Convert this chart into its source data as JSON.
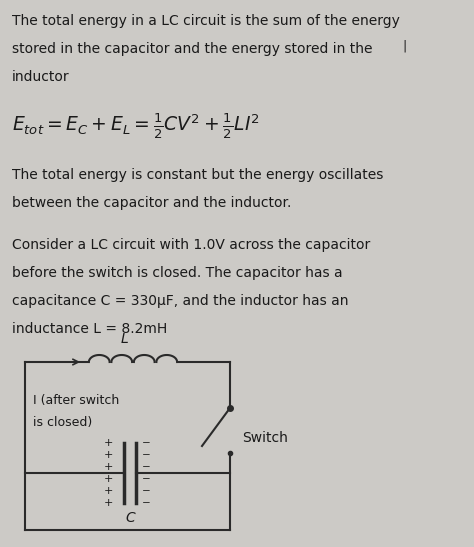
{
  "background_color": "#cccac6",
  "text_color": "#1a1a1a",
  "title_line1": "The total energy in a LC circuit is the sum of the energy",
  "title_line2": "stored in the capacitor and the energy stored in the⎥",
  "title_line3": "inductor",
  "equation": "$E_{tot} = E_C + E_L = \\frac{1}{2}CV^2 + \\frac{1}{2}LI^2$",
  "para1_line1": "The total energy is constant but the energy oscillates",
  "para1_line2": "between the capacitor and the inductor.",
  "para2_line1": "Consider a LC circuit with 1.0V across the capacitor",
  "para2_line2": "before the switch is closed. The capacitor has a",
  "para2_line3": "capacitance C = 330μF, and the inductor has an",
  "para2_line4": "inductance L = 8.2mH",
  "circuit_L_label": "L",
  "circuit_I_label": "I (after switch",
  "circuit_I_label2": "is closed)",
  "circuit_switch_label": "Switch",
  "circuit_C_label": "C",
  "font_size_text": 10.0,
  "font_size_eq": 13.5
}
